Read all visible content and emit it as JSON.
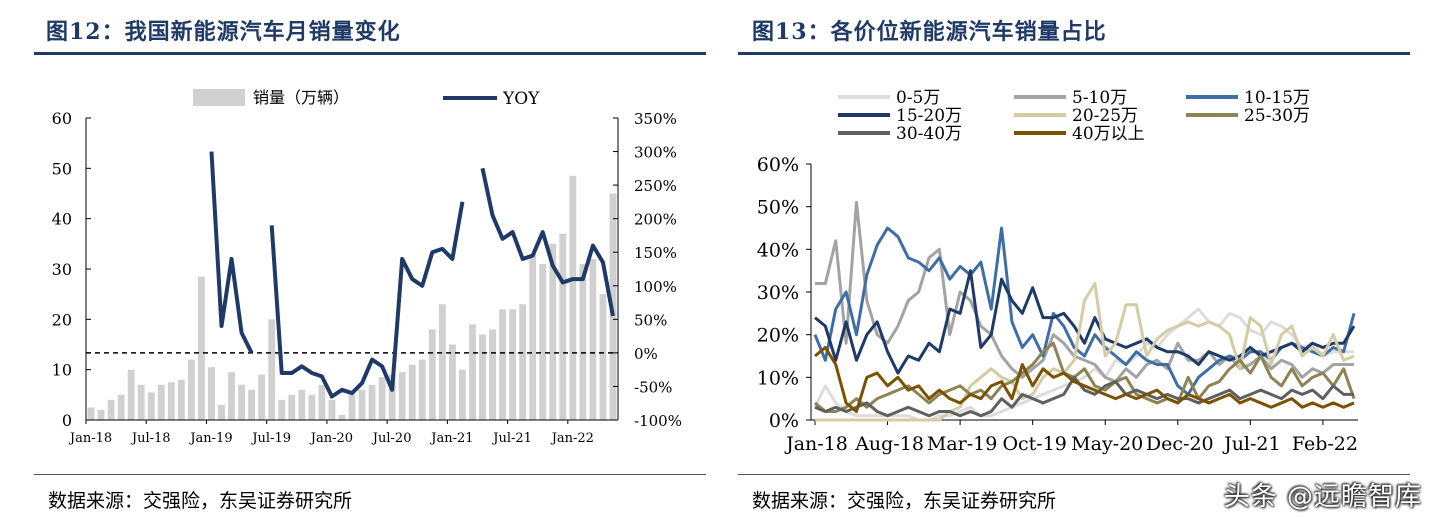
{
  "left": {
    "title": "图12：我国新能源汽车月销量变化",
    "source": "数据来源：交强险，东吴证券研究所"
  },
  "right": {
    "title": "图13：各价位新能源汽车销量占比",
    "source": "数据来源：交强险，东吴证券研究所"
  },
  "watermark": "头条 @远瞻智库",
  "colors": {
    "title": "#1f3a66",
    "bar": "#d0d0d0",
    "yoy": "#1f3a66"
  },
  "chart_data": [
    {
      "type": "bar+line",
      "title": "我国新能源汽车月销量变化",
      "xlabel": "",
      "ylabel": "",
      "x_tick_labels": [
        "Jan-18",
        "Jul-18",
        "Jan-19",
        "Jul-19",
        "Jan-20",
        "Jul-20",
        "Jan-21",
        "Jul-21",
        "Jan-22"
      ],
      "x_tick_index": [
        0,
        6,
        12,
        18,
        24,
        30,
        36,
        42,
        48
      ],
      "y_left": {
        "min": 0,
        "max": 60,
        "ticks": [
          "0",
          "10",
          "20",
          "30",
          "40",
          "50",
          "60"
        ]
      },
      "y_right": {
        "min": -100,
        "max": 350,
        "ticks": [
          "-100%",
          "-50%",
          "0%",
          "50%",
          "100%",
          "150%",
          "200%",
          "250%",
          "300%",
          "350%"
        ]
      },
      "legend": {
        "bars": "销量（万辆）",
        "line": "YOY"
      },
      "series": [
        {
          "name": "销量（万辆）",
          "axis": "left",
          "type": "bar",
          "values": [
            2.5,
            2.0,
            4.0,
            5.0,
            10.0,
            7.0,
            5.5,
            7.0,
            7.5,
            8.0,
            12.0,
            28.5,
            10.5,
            3.0,
            9.5,
            7.0,
            6.0,
            9.0,
            20.0,
            4.0,
            5.0,
            6.0,
            5.0,
            7.0,
            4.0,
            1.0,
            5.0,
            6.0,
            7.0,
            8.5,
            9.0,
            9.5,
            11.0,
            12.0,
            18.0,
            23.0,
            15.0,
            10.0,
            19.0,
            17.0,
            18.0,
            22.0,
            22.0,
            23.0,
            33.0,
            31.0,
            35.0,
            37.0,
            48.5,
            31.0,
            32.0,
            25.0,
            45.0
          ]
        },
        {
          "name": "YOY",
          "axis": "right",
          "type": "line",
          "values": [
            null,
            null,
            null,
            null,
            null,
            null,
            null,
            null,
            null,
            null,
            null,
            null,
            300,
            40,
            140,
            30,
            0,
            null,
            190,
            -30,
            -30,
            -20,
            -30,
            -35,
            -65,
            -55,
            -60,
            -45,
            -10,
            -20,
            -55,
            140,
            110,
            100,
            150,
            155,
            140,
            225,
            null,
            275,
            205,
            170,
            180,
            140,
            145,
            180,
            130,
            105,
            110,
            110,
            160,
            135,
            55
          ]
        }
      ]
    },
    {
      "type": "line",
      "title": "各价位新能源汽车销量占比",
      "xlabel": "",
      "ylabel": "",
      "x_tick_labels": [
        "Jan-18",
        "Aug-18",
        "Mar-19",
        "Oct-19",
        "May-20",
        "Dec-20",
        "Jul-21",
        "Feb-22"
      ],
      "x_tick_index": [
        0,
        7,
        14,
        21,
        28,
        35,
        42,
        49
      ],
      "ylim": [
        0,
        60
      ],
      "y_ticks": [
        "0%",
        "10%",
        "20%",
        "30%",
        "40%",
        "50%",
        "60%"
      ],
      "series": [
        {
          "name": "0-5万",
          "color": "#dcdcdc",
          "values": [
            3,
            8,
            4,
            2,
            1,
            1,
            1,
            1,
            1,
            1,
            0,
            0,
            1,
            1,
            2,
            3,
            1,
            1,
            2,
            3,
            4,
            5,
            6,
            7,
            8,
            9,
            10,
            12,
            10,
            14,
            13,
            15,
            18,
            17,
            20,
            22,
            24,
            26,
            23,
            22,
            25,
            24,
            21,
            20,
            23,
            22,
            20,
            17,
            18,
            15,
            16,
            16,
            16
          ]
        },
        {
          "name": "5-10万",
          "color": "#a3a3a3",
          "values": [
            32,
            32,
            42,
            18,
            51,
            28,
            20,
            18,
            22,
            28,
            30,
            38,
            40,
            20,
            30,
            28,
            22,
            20,
            15,
            12,
            10,
            12,
            14,
            20,
            18,
            15,
            14,
            13,
            10,
            9,
            12,
            10,
            13,
            14,
            12,
            18,
            14,
            14,
            16,
            13,
            15,
            12,
            13,
            15,
            12,
            14,
            13,
            10,
            12,
            11,
            13,
            13,
            13
          ]
        },
        {
          "name": "10-15万",
          "color": "#3f6ea6",
          "values": [
            20,
            14,
            26,
            30,
            20,
            34,
            41,
            45,
            43,
            38,
            37,
            35,
            38,
            33,
            36,
            34,
            37,
            26,
            45,
            23,
            17,
            20,
            15,
            25,
            22,
            17,
            15,
            20,
            17,
            15,
            13,
            16,
            14,
            13,
            13,
            8,
            6,
            10,
            12,
            14,
            15,
            14,
            16,
            16,
            14,
            17,
            18,
            17,
            16,
            15,
            17,
            16,
            25
          ]
        },
        {
          "name": "15-20万",
          "color": "#1f3a66",
          "values": [
            24,
            22,
            14,
            23,
            14,
            20,
            23,
            16,
            11,
            15,
            14,
            18,
            16,
            26,
            25,
            35,
            17,
            20,
            33,
            28,
            25,
            31,
            24,
            24,
            25,
            22,
            18,
            24,
            19,
            18,
            17,
            18,
            19,
            17,
            16,
            16,
            15,
            13,
            16,
            15,
            14,
            15,
            17,
            15,
            16,
            17,
            18,
            16,
            18,
            17,
            18,
            18,
            22
          ]
        },
        {
          "name": "20-25万",
          "color": "#d4cca4",
          "values": [
            0,
            0,
            0,
            0,
            0,
            0,
            0,
            0,
            0,
            0,
            0,
            0,
            0,
            2,
            3,
            8,
            10,
            12,
            10,
            9,
            5,
            6,
            10,
            12,
            11,
            14,
            28,
            32,
            15,
            18,
            27,
            27,
            15,
            19,
            21,
            22,
            23,
            22,
            23,
            22,
            20,
            12,
            24,
            22,
            13,
            20,
            22,
            15,
            17,
            15,
            20,
            14,
            15
          ]
        },
        {
          "name": "25-30万",
          "color": "#8c8454",
          "values": [
            4,
            2,
            2,
            3,
            5,
            3,
            5,
            6,
            7,
            8,
            6,
            4,
            6,
            7,
            8,
            6,
            7,
            5,
            8,
            9,
            11,
            13,
            16,
            18,
            11,
            10,
            12,
            8,
            7,
            9,
            10,
            6,
            5,
            4,
            5,
            4,
            10,
            5,
            8,
            9,
            12,
            14,
            11,
            15,
            10,
            8,
            12,
            8,
            10,
            11,
            8,
            12,
            5
          ]
        },
        {
          "name": "30-40万",
          "color": "#5f5f5f",
          "values": [
            3,
            2,
            3,
            2,
            3,
            4,
            2,
            1,
            2,
            3,
            2,
            1,
            2,
            2,
            1,
            2,
            1,
            2,
            5,
            3,
            6,
            5,
            4,
            5,
            6,
            10,
            7,
            6,
            8,
            9,
            6,
            7,
            6,
            5,
            6,
            5,
            5,
            4,
            5,
            6,
            7,
            5,
            6,
            7,
            6,
            5,
            7,
            6,
            7,
            5,
            8,
            6,
            6
          ]
        },
        {
          "name": "40万以上",
          "color": "#7a5200",
          "values": [
            15,
            17,
            13,
            4,
            2,
            10,
            11,
            8,
            10,
            7,
            8,
            5,
            7,
            5,
            4,
            6,
            5,
            8,
            9,
            5,
            13,
            8,
            12,
            10,
            11,
            9,
            8,
            7,
            6,
            5,
            6,
            5,
            6,
            7,
            5,
            4,
            6,
            5,
            4,
            5,
            6,
            4,
            5,
            4,
            3,
            4,
            5,
            3,
            4,
            3,
            4,
            3,
            4
          ]
        }
      ]
    }
  ]
}
